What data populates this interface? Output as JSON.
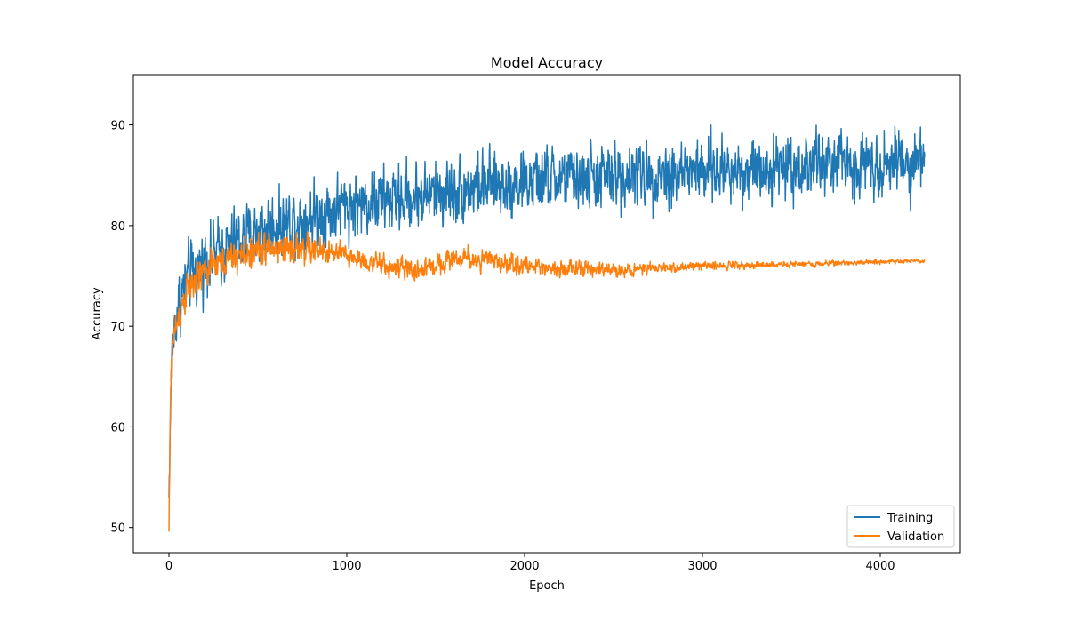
{
  "chart_data": {
    "type": "line",
    "title": "Model Accuracy",
    "xlabel": "Epoch",
    "ylabel": "Accuracy",
    "xlim": [
      -200,
      4450
    ],
    "ylim": [
      47.5,
      95
    ],
    "xticks": [
      0,
      1000,
      2000,
      3000,
      4000
    ],
    "yticks": [
      50,
      60,
      70,
      80,
      90
    ],
    "grid": false,
    "legend_position": "bottom-right",
    "series": [
      {
        "name": "Training",
        "color": "#1f77b4",
        "x": [
          0,
          10,
          20,
          40,
          60,
          80,
          100,
          150,
          200,
          250,
          300,
          400,
          500,
          600,
          700,
          800,
          900,
          1000,
          1200,
          1400,
          1600,
          1800,
          2000,
          2200,
          2400,
          2600,
          2800,
          3000,
          3200,
          3400,
          3600,
          3800,
          4000,
          4250
        ],
        "y": [
          53,
          63,
          68,
          71,
          72.5,
          73.5,
          74.5,
          75.5,
          76.5,
          77,
          77.5,
          78.5,
          79.5,
          80,
          80.5,
          81,
          81.5,
          82,
          82.5,
          83,
          83.5,
          84,
          84.3,
          84.6,
          84.8,
          85,
          85.2,
          85.4,
          85.6,
          85.8,
          86,
          86.2,
          86.3,
          86.5
        ],
        "noise_amplitude": [
          1,
          4,
          4,
          4,
          4,
          4,
          4,
          4,
          4,
          4,
          4,
          4,
          4,
          4,
          4,
          4,
          4,
          4,
          4,
          4,
          4,
          4,
          4,
          4,
          4,
          4,
          4,
          4,
          4,
          4,
          4,
          4,
          4,
          4
        ]
      },
      {
        "name": "Validation",
        "color": "#ff7f0e",
        "x": [
          0,
          10,
          20,
          40,
          60,
          80,
          100,
          150,
          200,
          250,
          300,
          400,
          500,
          600,
          700,
          800,
          900,
          1000,
          1200,
          1400,
          1600,
          1800,
          2000,
          2200,
          2400,
          2600,
          2800,
          3000,
          3200,
          3400,
          3600,
          3800,
          4000,
          4250
        ],
        "y": [
          49.6,
          64,
          68,
          70,
          71.5,
          72.5,
          73.5,
          74.5,
          75.5,
          76,
          76.5,
          77,
          77.5,
          77.7,
          77.8,
          77.6,
          77.3,
          77,
          76,
          75.5,
          76.8,
          76.5,
          76,
          75.8,
          75.6,
          75.6,
          75.8,
          76,
          76.1,
          76.1,
          76.2,
          76.3,
          76.4,
          76.5
        ],
        "noise_amplitude": [
          1,
          3,
          3,
          2.2,
          2.2,
          2.2,
          2.2,
          2,
          2,
          2,
          2,
          2,
          2,
          2,
          2,
          1.8,
          1.5,
          1.3,
          1.3,
          1.3,
          1.3,
          1.3,
          1.1,
          1,
          0.9,
          0.7,
          0.6,
          0.5,
          0.45,
          0.4,
          0.35,
          0.3,
          0.25,
          0.2
        ]
      }
    ]
  }
}
